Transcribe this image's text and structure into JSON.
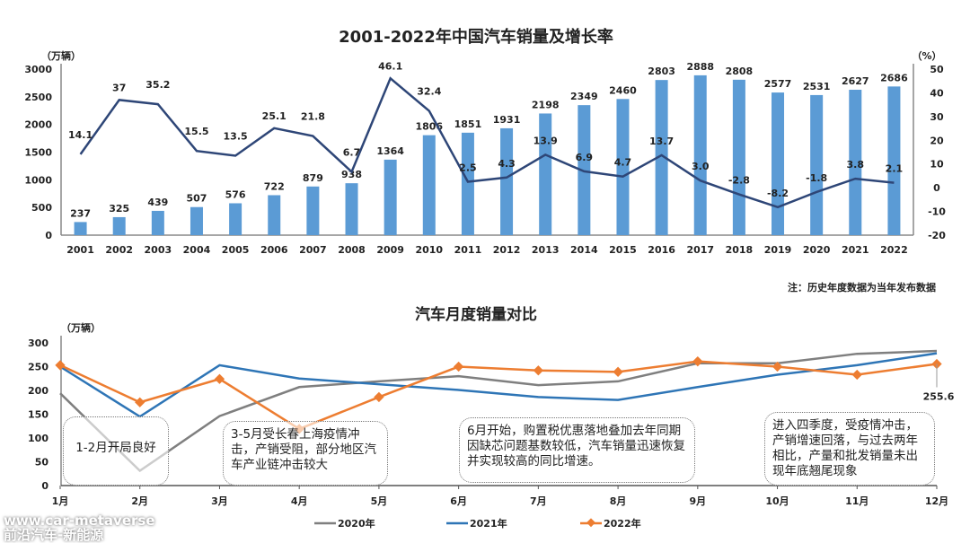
{
  "chart_data": [
    {
      "type": "bar+line",
      "title": "2001-2022年中国汽车销量及增长率",
      "ylabel_left": "（万辆）",
      "ylabel_right": "（%）",
      "ylim_left": [
        0,
        3000
      ],
      "yticks_left": [
        0,
        500,
        1000,
        1500,
        2000,
        2500,
        3000
      ],
      "ylim_right": [
        -20,
        50
      ],
      "yticks_right": [
        -20,
        -10,
        0,
        10,
        20,
        30,
        40,
        50
      ],
      "categories": [
        "2001",
        "2002",
        "2003",
        "2004",
        "2005",
        "2006",
        "2007",
        "2008",
        "2009",
        "2010",
        "2011",
        "2012",
        "2013",
        "2014",
        "2015",
        "2016",
        "2017",
        "2018",
        "2019",
        "2020",
        "2021",
        "2022"
      ],
      "series": [
        {
          "kind": "bar",
          "axis": "left",
          "color": "#5b9bd5",
          "values": [
            237,
            325,
            439,
            507,
            576,
            722,
            879,
            938,
            1364,
            1806,
            1851,
            1931,
            2198,
            2349,
            2460,
            2803,
            2888,
            2808,
            2577,
            2531,
            2627,
            2686
          ]
        },
        {
          "kind": "line",
          "axis": "right",
          "color": "#2e4677",
          "values": [
            14.1,
            37,
            35.2,
            15.5,
            13.5,
            25.1,
            21.8,
            6.7,
            46.1,
            32.4,
            2.5,
            4.3,
            13.9,
            6.9,
            4.7,
            13.7,
            3.0,
            -2.8,
            -8.2,
            -1.8,
            3.8,
            2.1
          ],
          "labels": [
            "14.1",
            "37",
            "35.2",
            "15.5",
            "13.5",
            "25.1",
            "21.8",
            "6.7",
            "46.1",
            "32.4",
            "2.5",
            "4.3",
            "13.9",
            "6.9",
            "4.7",
            "13.7",
            "3.0",
            "-2.8",
            "-8.2",
            "-1.8",
            "3.8",
            "2.1"
          ]
        }
      ],
      "note": "注：历史年度数据为当年发布数据",
      "grid": false
    },
    {
      "type": "line",
      "title": "汽车月度销量对比",
      "ylabel": "（万辆）",
      "ylim": [
        0,
        300
      ],
      "yticks": [
        0,
        50,
        100,
        150,
        200,
        250,
        300
      ],
      "categories": [
        "1月",
        "2月",
        "3月",
        "4月",
        "5月",
        "6月",
        "7月",
        "8月",
        "9月",
        "10月",
        "11月",
        "12月"
      ],
      "series": [
        {
          "name": "2020年",
          "color": "#7f7f7f",
          "marker": false,
          "values": [
            194,
            31,
            146,
            207,
            219,
            230,
            211,
            219,
            257,
            257,
            277,
            283
          ]
        },
        {
          "name": "2021年",
          "color": "#2e75b6",
          "marker": false,
          "values": [
            250,
            145,
            253,
            225,
            213,
            201,
            186,
            180,
            207,
            233,
            253,
            278
          ]
        },
        {
          "name": "2022年",
          "color": "#ed7d31",
          "marker": true,
          "values": [
            253,
            175,
            224,
            119,
            186,
            250,
            242,
            239,
            261,
            250,
            233,
            255.6
          ]
        }
      ],
      "data_label": "255.6",
      "legend": "bottom",
      "grid": false,
      "annotations": [
        "1-2月开局良好",
        "3-5月受长春上海疫情冲击，产销受阻，部分地区汽车产业链冲击较大",
        "6月开始，购置税优惠落地叠加去年同期因缺芯问题基数较低，汽车销量迅速恢复并实现较高的同比增速。",
        "进入四季度，受疫情冲击，产销增速回落，与过去两年相比，产量和批发销量未出现年底翘尾现象"
      ]
    }
  ],
  "watermark": {
    "line1": "www.car-metaverse",
    "line2": "前沿汽车-新能源"
  }
}
